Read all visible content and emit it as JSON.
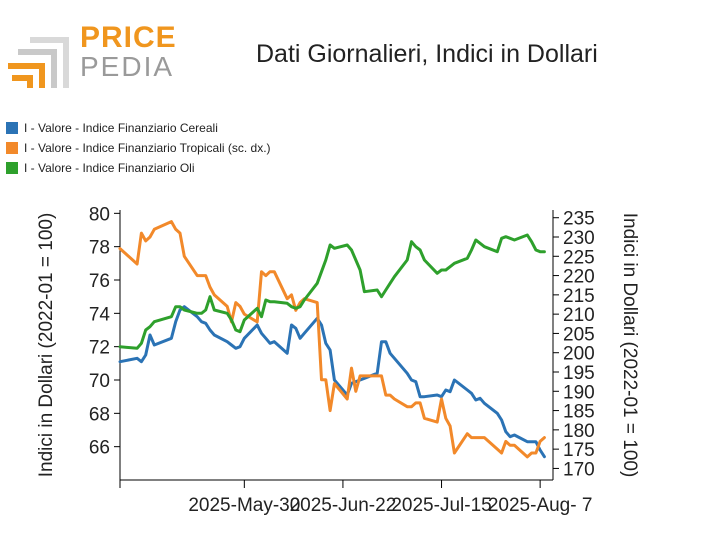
{
  "logo": {
    "word1": "PRICE",
    "word2": "PEDIA",
    "icon": "pricepedia-logo-icon"
  },
  "chart_data": {
    "type": "line",
    "title": "Dati Giornalieri, Indici in Dollari",
    "ylabel": "Indici in Dollari (2022-01 = 100)",
    "ylabel_right": "Indici in Dollari (2022-01 = 100)",
    "xlabel": "",
    "x_start": "2025-05-01",
    "x_end": "2025-08-10",
    "x_ticks": [
      "2025-May-30",
      "2025-Jun-22",
      "2025-Jul-15",
      "2025-Aug- 7"
    ],
    "x_tick_dates": [
      "2025-05-30",
      "2025-06-22",
      "2025-07-15",
      "2025-08-07"
    ],
    "ylim": [
      64,
      80.2
    ],
    "yticks": [
      66,
      68,
      70,
      72,
      74,
      76,
      78,
      80
    ],
    "ylim_right": [
      167,
      237
    ],
    "yticks_right": [
      170,
      175,
      180,
      185,
      190,
      195,
      200,
      205,
      210,
      215,
      220,
      225,
      230,
      235
    ],
    "grid": false,
    "legend_position": "top-left",
    "series": [
      {
        "name": "I - Valore - Indice Finanziario Cereali",
        "color": "#2b73b5",
        "axis": "left",
        "x": [
          "2025-05-01",
          "2025-05-05",
          "2025-05-06",
          "2025-05-07",
          "2025-05-08",
          "2025-05-09",
          "2025-05-13",
          "2025-05-14",
          "2025-05-15",
          "2025-05-16",
          "2025-05-19",
          "2025-05-20",
          "2025-05-21",
          "2025-05-22",
          "2025-05-23",
          "2025-05-26",
          "2025-05-27",
          "2025-05-28",
          "2025-05-29",
          "2025-05-30",
          "2025-06-02",
          "2025-06-03",
          "2025-06-04",
          "2025-06-05",
          "2025-06-06",
          "2025-06-09",
          "2025-06-10",
          "2025-06-11",
          "2025-06-12",
          "2025-06-13",
          "2025-06-16",
          "2025-06-17",
          "2025-06-18",
          "2025-06-19",
          "2025-06-20",
          "2025-06-23",
          "2025-06-24",
          "2025-06-25",
          "2025-06-26",
          "2025-06-27",
          "2025-06-30",
          "2025-07-01",
          "2025-07-02",
          "2025-07-03",
          "2025-07-04",
          "2025-07-07",
          "2025-07-08",
          "2025-07-09",
          "2025-07-10",
          "2025-07-11",
          "2025-07-14",
          "2025-07-15",
          "2025-07-16",
          "2025-07-17",
          "2025-07-18",
          "2025-07-21",
          "2025-07-22",
          "2025-07-23",
          "2025-07-24",
          "2025-07-25",
          "2025-07-28",
          "2025-07-29",
          "2025-07-30",
          "2025-07-31",
          "2025-08-01",
          "2025-08-04",
          "2025-08-05",
          "2025-08-06",
          "2025-08-07",
          "2025-08-08"
        ],
        "values": [
          71.1,
          71.3,
          71.1,
          71.5,
          72.7,
          72.1,
          72.5,
          73.5,
          74.2,
          74.4,
          73.8,
          73.5,
          73.4,
          73.0,
          72.7,
          72.3,
          72.1,
          71.9,
          72.0,
          72.5,
          73.3,
          72.8,
          72.5,
          72.2,
          72.3,
          71.6,
          73.3,
          73.1,
          72.5,
          72.8,
          73.7,
          73.3,
          72.2,
          71.8,
          70.0,
          69.1,
          69.8,
          69.9,
          70.0,
          70.1,
          70.4,
          72.3,
          72.3,
          71.6,
          71.3,
          70.4,
          70.0,
          69.9,
          69.0,
          69.0,
          69.1,
          69.0,
          69.4,
          69.3,
          70.0,
          69.4,
          69.2,
          68.8,
          68.9,
          68.6,
          68.0,
          67.6,
          66.9,
          66.6,
          66.7,
          66.3,
          66.3,
          66.3,
          65.8,
          65.4
        ]
      },
      {
        "name": "I - Valore - Indice Finanziario Tropicali (sc. dx.)",
        "color": "#f2892a",
        "axis": "right",
        "x": [
          "2025-05-01",
          "2025-05-05",
          "2025-05-06",
          "2025-05-07",
          "2025-05-08",
          "2025-05-09",
          "2025-05-13",
          "2025-05-14",
          "2025-05-15",
          "2025-05-16",
          "2025-05-19",
          "2025-05-20",
          "2025-05-21",
          "2025-05-22",
          "2025-05-23",
          "2025-05-26",
          "2025-05-27",
          "2025-05-28",
          "2025-05-29",
          "2025-05-30",
          "2025-06-02",
          "2025-06-03",
          "2025-06-04",
          "2025-06-05",
          "2025-06-06",
          "2025-06-09",
          "2025-06-10",
          "2025-06-11",
          "2025-06-12",
          "2025-06-13",
          "2025-06-16",
          "2025-06-17",
          "2025-06-18",
          "2025-06-19",
          "2025-06-20",
          "2025-06-23",
          "2025-06-24",
          "2025-06-25",
          "2025-06-26",
          "2025-06-27",
          "2025-06-30",
          "2025-07-01",
          "2025-07-02",
          "2025-07-03",
          "2025-07-04",
          "2025-07-07",
          "2025-07-08",
          "2025-07-09",
          "2025-07-10",
          "2025-07-11",
          "2025-07-14",
          "2025-07-15",
          "2025-07-16",
          "2025-07-17",
          "2025-07-18",
          "2025-07-21",
          "2025-07-22",
          "2025-07-23",
          "2025-07-24",
          "2025-07-25",
          "2025-07-28",
          "2025-07-29",
          "2025-07-30",
          "2025-07-31",
          "2025-08-01",
          "2025-08-04",
          "2025-08-05",
          "2025-08-06",
          "2025-08-07",
          "2025-08-08"
        ],
        "values": [
          227,
          223,
          231,
          229,
          230,
          232,
          234,
          232,
          231,
          225,
          220,
          220,
          220,
          217,
          215,
          212,
          208,
          213,
          212,
          210,
          208,
          221,
          220,
          221,
          221,
          214,
          215,
          211,
          213,
          214,
          213,
          193,
          193,
          185,
          192,
          188,
          196,
          190,
          194,
          194,
          194,
          194,
          189,
          189,
          188,
          186,
          186,
          187,
          187,
          183,
          182,
          188,
          183,
          181,
          174,
          179,
          178,
          178,
          178,
          178,
          175,
          174,
          177,
          176,
          176,
          173,
          174,
          174,
          177,
          178
        ]
      },
      {
        "name": "I - Valore - Indice Finanziario Oli",
        "color": "#2ea02c",
        "axis": "left",
        "x": [
          "2025-05-01",
          "2025-05-05",
          "2025-05-06",
          "2025-05-07",
          "2025-05-08",
          "2025-05-09",
          "2025-05-13",
          "2025-05-14",
          "2025-05-15",
          "2025-05-16",
          "2025-05-19",
          "2025-05-20",
          "2025-05-21",
          "2025-05-22",
          "2025-05-23",
          "2025-05-26",
          "2025-05-27",
          "2025-05-28",
          "2025-05-29",
          "2025-05-30",
          "2025-06-02",
          "2025-06-03",
          "2025-06-04",
          "2025-06-05",
          "2025-06-06",
          "2025-06-09",
          "2025-06-10",
          "2025-06-11",
          "2025-06-12",
          "2025-06-13",
          "2025-06-16",
          "2025-06-17",
          "2025-06-18",
          "2025-06-19",
          "2025-06-20",
          "2025-06-23",
          "2025-06-24",
          "2025-06-25",
          "2025-06-26",
          "2025-06-27",
          "2025-06-30",
          "2025-07-01",
          "2025-07-02",
          "2025-07-03",
          "2025-07-04",
          "2025-07-07",
          "2025-07-08",
          "2025-07-09",
          "2025-07-10",
          "2025-07-11",
          "2025-07-14",
          "2025-07-15",
          "2025-07-16",
          "2025-07-17",
          "2025-07-18",
          "2025-07-21",
          "2025-07-22",
          "2025-07-23",
          "2025-07-24",
          "2025-07-25",
          "2025-07-28",
          "2025-07-29",
          "2025-07-30",
          "2025-07-31",
          "2025-08-01",
          "2025-08-04",
          "2025-08-05",
          "2025-08-06",
          "2025-08-07",
          "2025-08-08"
        ],
        "values": [
          72.0,
          71.9,
          72.2,
          73.0,
          73.2,
          73.5,
          73.8,
          74.4,
          74.4,
          74.2,
          74.0,
          74.0,
          74.2,
          75.0,
          74.2,
          74.0,
          73.6,
          73.0,
          72.9,
          73.6,
          74.3,
          73.8,
          74.8,
          74.7,
          74.7,
          74.6,
          74.4,
          74.3,
          74.4,
          74.8,
          75.8,
          76.5,
          77.2,
          78.1,
          77.9,
          78.1,
          77.8,
          77.2,
          76.6,
          75.3,
          75.4,
          75.0,
          75.4,
          75.8,
          76.2,
          77.2,
          78.3,
          78.0,
          77.8,
          77.2,
          76.4,
          76.6,
          76.6,
          76.8,
          77.0,
          77.3,
          77.8,
          78.4,
          78.2,
          78.0,
          77.7,
          78.5,
          78.6,
          78.5,
          78.4,
          78.7,
          78.3,
          77.8,
          77.7,
          77.7
        ]
      }
    ]
  }
}
